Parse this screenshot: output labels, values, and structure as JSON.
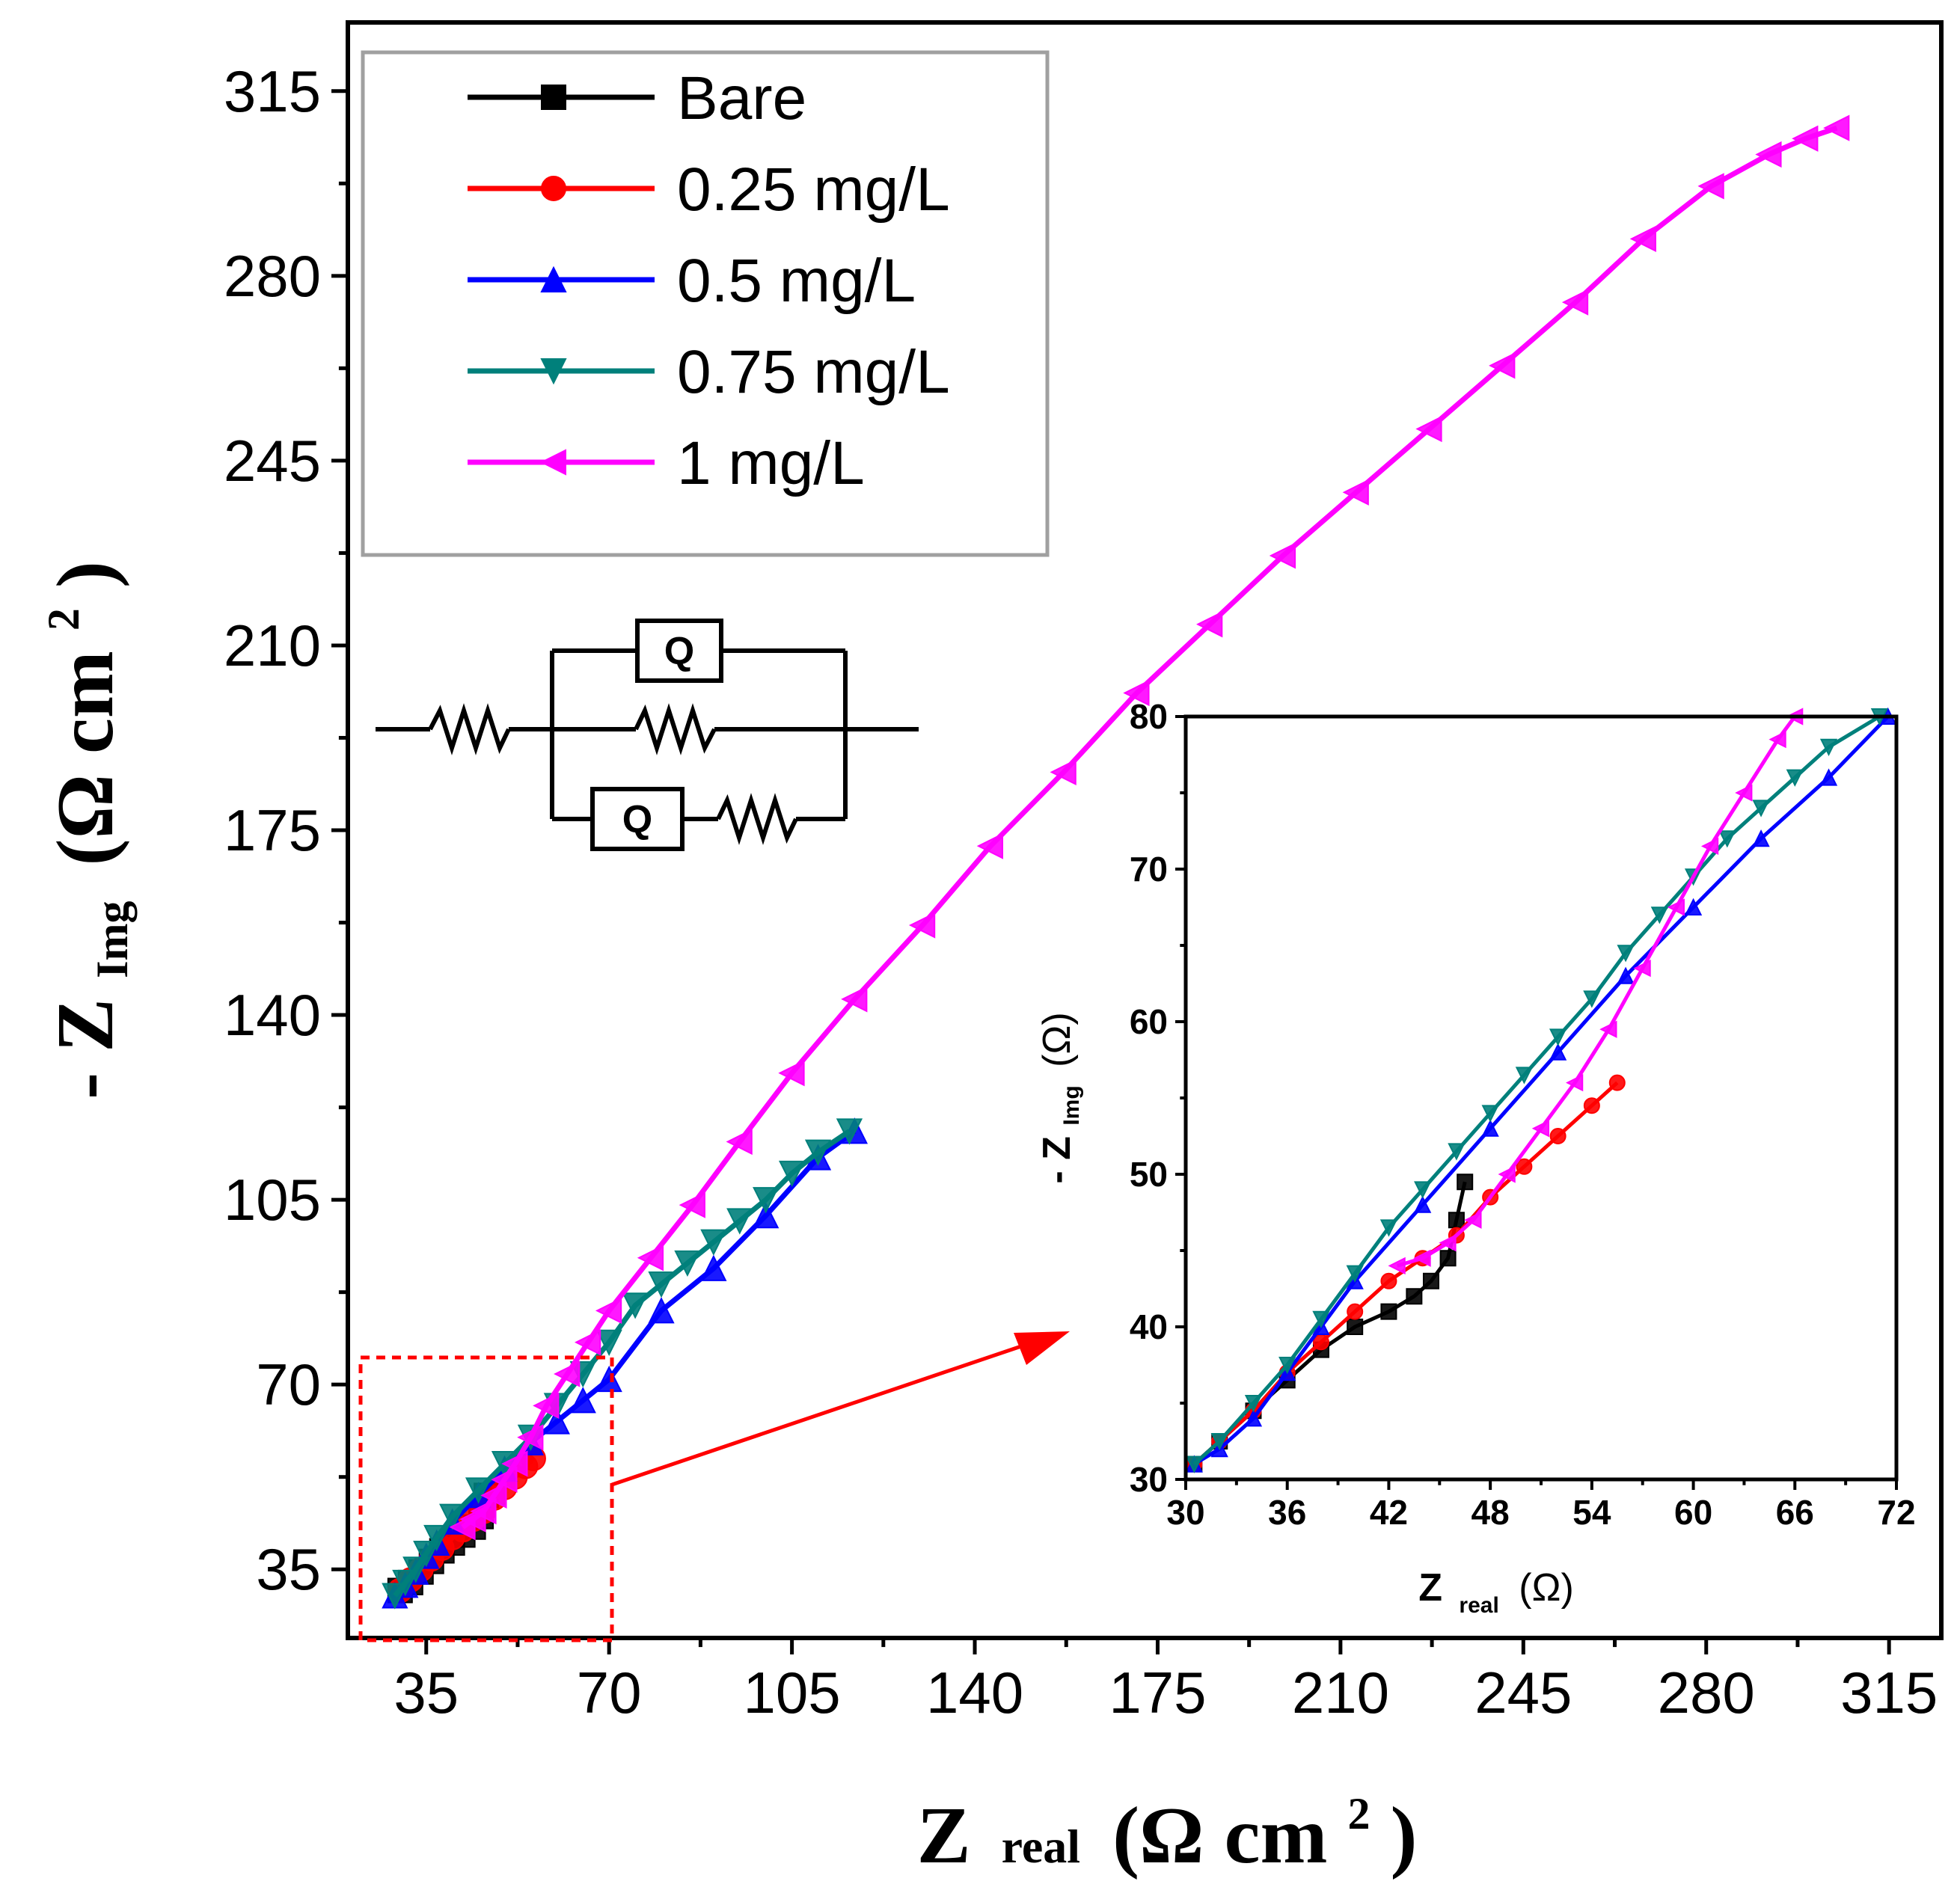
{
  "chart_data": [
    {
      "type": "line",
      "role": "main",
      "xlabel": {
        "main": "Z",
        "sub": "real",
        "unit": "(Ω cm",
        "sup": "2",
        "close": ")"
      },
      "ylabel": {
        "prefix": "- Z",
        "sub": "Img",
        "unit": "(Ω cm",
        "sup": "2",
        "close": ")"
      },
      "xlim": [
        20,
        325
      ],
      "ylim": [
        22,
        328
      ],
      "xticks": [
        "35",
        "70",
        "105",
        "140",
        "175",
        "210",
        "245",
        "280",
        "315"
      ],
      "yticks": [
        "35",
        "70",
        "105",
        "140",
        "175",
        "210",
        "245",
        "280",
        "315"
      ],
      "legend_position": "top-left",
      "legend": [
        "Bare",
        "0.25 mg/L",
        "0.5 mg/L",
        "0.75 mg/L",
        "1 mg/L"
      ],
      "series": [
        {
          "name": "Bare",
          "color": "#000000",
          "marker": "square",
          "x": [
            30,
            32,
            34,
            36,
            38,
            40,
            42,
            44,
            45.5,
            46.5
          ],
          "y": [
            31,
            32.5,
            34.5,
            36.5,
            38.5,
            40,
            41.5,
            43,
            45,
            49
          ]
        },
        {
          "name": "0.25 mg/L",
          "color": "#ff0000",
          "marker": "circle",
          "x": [
            30,
            32,
            34,
            36,
            38,
            40,
            42,
            44,
            46,
            48,
            50,
            52,
            54,
            55.5
          ],
          "y": [
            31,
            33,
            35,
            37,
            39,
            41,
            42.5,
            44.5,
            46,
            48.5,
            50.5,
            52.5,
            54.5,
            56
          ]
        },
        {
          "name": "0.5 mg/L",
          "color": "#0000ff",
          "marker": "triangle-up",
          "x": [
            29,
            31,
            33,
            35,
            37,
            40,
            45,
            50,
            55,
            60,
            65,
            70,
            80,
            90,
            100,
            110,
            117
          ],
          "y": [
            30,
            32,
            34.5,
            37.5,
            40,
            44,
            49,
            54,
            59,
            63,
            67,
            71,
            84,
            92,
            102,
            113,
            118
          ]
        },
        {
          "name": "0.75 mg/L",
          "color": "#00807b",
          "marker": "triangle-down",
          "x": [
            29,
            31,
            33,
            35,
            37,
            40,
            45,
            50,
            55,
            60,
            65,
            70,
            75,
            80,
            85,
            90,
            95,
            100,
            105,
            110,
            116
          ],
          "y": [
            30,
            32.5,
            35,
            38,
            41,
            45,
            50,
            55,
            60,
            66,
            72,
            78,
            85,
            89,
            93,
            97,
            101,
            105,
            110,
            114,
            118
          ]
        },
        {
          "name": "1 mg/L",
          "color": "#ff00ff",
          "marker": "triangle-left",
          "x": [
            42,
            44,
            46,
            48,
            50,
            52,
            55,
            58,
            62,
            66,
            70,
            78,
            86,
            95,
            105,
            117,
            130,
            143,
            157,
            171,
            185,
            199,
            213,
            227,
            241,
            255,
            268,
            281,
            292,
            299,
            305
          ],
          "y": [
            43,
            44.5,
            46,
            49,
            52,
            55,
            60,
            66,
            72,
            78,
            84,
            94,
            104,
            116,
            129,
            143,
            157,
            172,
            186,
            201,
            214,
            227,
            239,
            251,
            263,
            275,
            287,
            297,
            303,
            306,
            308
          ]
        }
      ]
    },
    {
      "type": "line",
      "role": "inset",
      "xlabel": {
        "main": "Z",
        "sub": "real",
        "unit": "(Ω)"
      },
      "ylabel": {
        "prefix": "- Z",
        "sub": "Img",
        "unit": "(Ω)"
      },
      "xlim": [
        30,
        72
      ],
      "ylim": [
        30,
        80
      ],
      "xticks": [
        "30",
        "36",
        "42",
        "48",
        "54",
        "60",
        "66",
        "72"
      ],
      "yticks": [
        "30",
        "40",
        "50",
        "60",
        "70",
        "80"
      ],
      "series": [
        {
          "name": "Bare",
          "color": "#000000",
          "marker": "square",
          "x": [
            30.5,
            32,
            34,
            36,
            38,
            40,
            42,
            43.5,
            44.5,
            45.5,
            46,
            46.5
          ],
          "y": [
            31,
            32.5,
            34.5,
            36.5,
            38.5,
            40,
            41,
            42,
            43,
            44.5,
            47,
            49.5
          ]
        },
        {
          "name": "0.25 mg/L",
          "color": "#ff0000",
          "marker": "circle",
          "x": [
            30.5,
            32,
            34,
            36,
            38,
            40,
            42,
            44,
            46,
            48,
            50,
            52,
            54,
            55.5
          ],
          "y": [
            31,
            32.5,
            34.5,
            37,
            39,
            41,
            43,
            44.5,
            46,
            48.5,
            50.5,
            52.5,
            54.5,
            56
          ]
        },
        {
          "name": "0.5 mg/L",
          "color": "#0000ff",
          "marker": "triangle-up",
          "x": [
            30.5,
            32,
            34,
            36,
            38,
            40,
            44,
            48,
            52,
            56,
            60,
            64,
            68,
            71.5
          ],
          "y": [
            31,
            32,
            34,
            37,
            40,
            43,
            48,
            53,
            58,
            63,
            67.5,
            72,
            76,
            80
          ]
        },
        {
          "name": "0.75 mg/L",
          "color": "#00807b",
          "marker": "triangle-down",
          "x": [
            30.5,
            32,
            34,
            36,
            38,
            40,
            42,
            44,
            46,
            48,
            50,
            52,
            54,
            56,
            58,
            60,
            62,
            64,
            66,
            68,
            71
          ],
          "y": [
            31,
            32.5,
            35,
            37.5,
            40.5,
            43.5,
            46.5,
            49,
            51.5,
            54,
            56.5,
            59,
            61.5,
            64.5,
            67,
            69.5,
            72,
            74,
            76,
            78,
            80
          ]
        },
        {
          "name": "1 mg/L",
          "color": "#ff00ff",
          "marker": "triangle-left",
          "x": [
            42.5,
            44,
            45.5,
            47,
            49,
            51,
            53,
            55,
            57,
            59,
            61,
            63,
            65,
            66
          ],
          "y": [
            44,
            44.5,
            45.5,
            47,
            50,
            53,
            56,
            59.5,
            63.5,
            67.5,
            71.5,
            75,
            78.5,
            80
          ]
        }
      ]
    }
  ],
  "circuit": {
    "element_label": "Q"
  }
}
